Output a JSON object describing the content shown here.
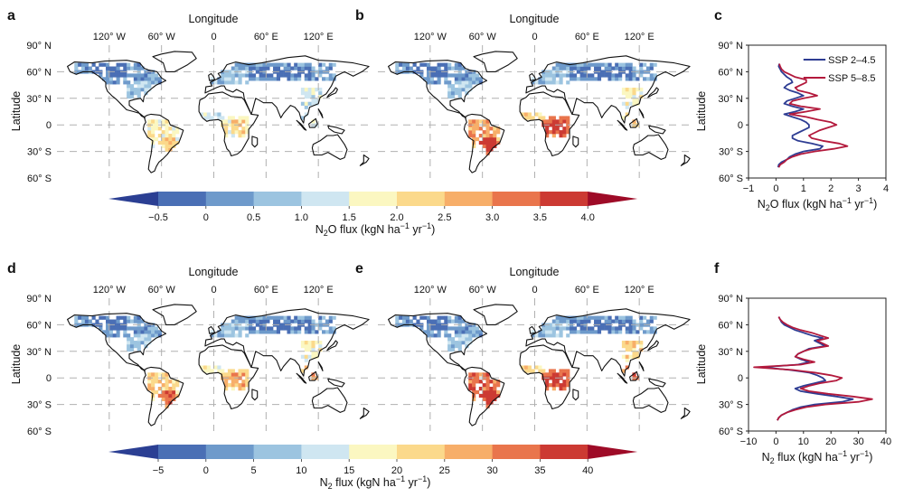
{
  "panels": [
    {
      "id": "a",
      "label": "a",
      "kind": "map",
      "xlabel": "Longitude",
      "ylabel": "Latitude",
      "scenario": "ssp245",
      "variable": "n2o"
    },
    {
      "id": "b",
      "label": "b",
      "kind": "map",
      "xlabel": "Longitude",
      "ylabel": "Latitude",
      "scenario": "ssp585",
      "variable": "n2o"
    },
    {
      "id": "c",
      "label": "c",
      "kind": "profile",
      "ylabel": "Latitude",
      "variable": "n2o"
    },
    {
      "id": "d",
      "label": "d",
      "kind": "map",
      "xlabel": "Longitude",
      "ylabel": "Latitude",
      "scenario": "ssp245",
      "variable": "n2"
    },
    {
      "id": "e",
      "label": "e",
      "kind": "map",
      "xlabel": "Longitude",
      "ylabel": "Latitude",
      "scenario": "ssp585",
      "variable": "n2"
    },
    {
      "id": "f",
      "label": "f",
      "kind": "profile",
      "ylabel": "Latitude",
      "variable": "n2"
    }
  ],
  "map_axes": {
    "lon_ticks": [
      -120,
      -60,
      0,
      60,
      120
    ],
    "lon_tick_labels": [
      "120° W",
      "60° W",
      "0",
      "60° E",
      "120° E"
    ],
    "lat_ticks": [
      90,
      60,
      30,
      0,
      -30,
      -60
    ],
    "lat_tick_labels": [
      "90° N",
      "60° N",
      "30° N",
      "0",
      "30° S",
      "60° S"
    ],
    "lon_range": [
      -180,
      180
    ],
    "lat_range": [
      -60,
      90
    ],
    "gridlines": "dashed"
  },
  "colorbars": [
    {
      "variable": "n2o",
      "label_main": "N",
      "label_sub": "2",
      "label_rest": "O flux (kgN ha",
      "label_exp1": "−1",
      "label_mid": " yr",
      "label_exp2": "−1",
      "label_end": ")",
      "ticks": [
        "−0.5",
        "0",
        "0.5",
        "1.0",
        "1.5",
        "2.0",
        "2.5",
        "3.0",
        "3.5",
        "4.0"
      ],
      "min": -1,
      "max": 4.5,
      "extend": "both"
    },
    {
      "variable": "n2",
      "label_main": "N",
      "label_sub": "2",
      "label_rest": " flux (kgN ha",
      "label_exp1": "−1",
      "label_mid": " yr",
      "label_exp2": "−1",
      "label_end": ")",
      "ticks": [
        "−5",
        "0",
        "5",
        "10",
        "15",
        "20",
        "25",
        "30",
        "35",
        "40"
      ],
      "min": -10,
      "max": 45,
      "extend": "both"
    }
  ],
  "colors": {
    "bins": [
      "#4a6fb5",
      "#6e9acb",
      "#9cc4e0",
      "#cfe6f1",
      "#fbf7c1",
      "#fbd98b",
      "#f7ae69",
      "#e9754c",
      "#cc3a33"
    ],
    "under": "#2b3f93",
    "over": "#9e0b27",
    "ssp245": "#2e3d93",
    "ssp585": "#b3193c",
    "land_outline": "#111111"
  },
  "chart_data": [
    {
      "type": "line",
      "panel": "c",
      "title": "",
      "xlabel": "N2O flux (kgN ha−1 yr−1)",
      "ylabel": "Latitude",
      "xlim": [
        -1,
        4
      ],
      "ylim": [
        -60,
        90
      ],
      "x_ticks": [
        -1,
        0,
        1,
        2,
        3,
        4
      ],
      "x_tick_labels": [
        "−1",
        "0",
        "1",
        "2",
        "3",
        "4"
      ],
      "y_ticks": [
        90,
        60,
        30,
        0,
        -30,
        -60
      ],
      "y_tick_labels": [
        "90° N",
        "60° N",
        "30° N",
        "0",
        "30° S",
        "60° S"
      ],
      "legend": "top-right",
      "series": [
        {
          "name": "SSP 2–4.5",
          "color": "#2e3d93",
          "lat": [
            69,
            66,
            63,
            60,
            57,
            54,
            51,
            48,
            45,
            42,
            39,
            36,
            33,
            30,
            27,
            24,
            21,
            18,
            15,
            12,
            9,
            6,
            3,
            0,
            -3,
            -6,
            -9,
            -12,
            -15,
            -18,
            -21,
            -24,
            -27,
            -30,
            -33,
            -36,
            -39,
            -42,
            -45,
            -48
          ],
          "x": [
            0.12,
            0.1,
            0.15,
            0.2,
            0.3,
            0.4,
            0.55,
            0.6,
            0.4,
            0.3,
            0.5,
            0.8,
            1.0,
            0.7,
            0.4,
            0.3,
            0.6,
            1.0,
            0.7,
            0.3,
            0.6,
            0.9,
            1.1,
            1.2,
            1.2,
            1.0,
            0.8,
            0.6,
            0.6,
            0.8,
            1.3,
            1.7,
            1.6,
            1.0,
            0.7,
            0.5,
            0.4,
            0.2,
            0.1,
            0.08
          ]
        },
        {
          "name": "SSP 5–8.5",
          "color": "#b3193c",
          "lat": [
            69,
            66,
            63,
            60,
            57,
            54,
            51,
            48,
            45,
            42,
            39,
            36,
            33,
            30,
            27,
            24,
            21,
            18,
            15,
            12,
            9,
            6,
            3,
            0,
            -3,
            -6,
            -9,
            -12,
            -15,
            -18,
            -21,
            -24,
            -27,
            -30,
            -33,
            -36,
            -39,
            -42,
            -45,
            -48
          ],
          "x": [
            0.12,
            0.15,
            0.2,
            0.3,
            0.5,
            0.7,
            1.1,
            1.1,
            0.9,
            0.7,
            0.8,
            1.2,
            1.5,
            1.0,
            0.6,
            0.5,
            0.9,
            1.6,
            1.1,
            0.5,
            1.1,
            1.5,
            2.0,
            2.2,
            1.9,
            1.6,
            1.4,
            1.2,
            1.3,
            1.7,
            2.3,
            2.6,
            2.1,
            1.4,
            0.9,
            0.6,
            0.4,
            0.3,
            0.15,
            0.1
          ]
        }
      ]
    },
    {
      "type": "line",
      "panel": "f",
      "title": "",
      "xlabel": "N2 flux (kgN ha−1 yr−1)",
      "ylabel": "Latitude",
      "xlim": [
        -10,
        40
      ],
      "ylim": [
        -60,
        90
      ],
      "x_ticks": [
        -10,
        0,
        10,
        20,
        30,
        40
      ],
      "x_tick_labels": [
        "−10",
        "0",
        "10",
        "20",
        "30",
        "40"
      ],
      "y_ticks": [
        90,
        60,
        30,
        0,
        -30,
        -60
      ],
      "y_tick_labels": [
        "90° N",
        "60° N",
        "30° N",
        "0",
        "30° S",
        "60° S"
      ],
      "series": [
        {
          "name": "SSP 2–4.5",
          "color": "#2e3d93",
          "lat": [
            69,
            66,
            63,
            60,
            57,
            54,
            51,
            48,
            45,
            42,
            39,
            36,
            33,
            30,
            27,
            24,
            21,
            18,
            15,
            12,
            9,
            6,
            3,
            0,
            -3,
            -6,
            -9,
            -12,
            -15,
            -18,
            -21,
            -24,
            -27,
            -30,
            -33,
            -36,
            -39,
            -42,
            -45,
            -48
          ],
          "x": [
            1,
            1.5,
            2,
            3,
            5,
            7,
            10,
            13,
            17,
            14,
            16,
            18,
            12,
            10,
            8,
            7,
            9,
            12,
            8,
            -5,
            5,
            12,
            15,
            17,
            18,
            14,
            10,
            7,
            9,
            15,
            22,
            28,
            24,
            14,
            9,
            6,
            4,
            2,
            1,
            0.5
          ]
        },
        {
          "name": "SSP 5–8.5",
          "color": "#b3193c",
          "lat": [
            69,
            66,
            63,
            60,
            57,
            54,
            51,
            48,
            45,
            42,
            39,
            36,
            33,
            30,
            27,
            24,
            21,
            18,
            15,
            12,
            9,
            6,
            3,
            0,
            -3,
            -6,
            -9,
            -12,
            -15,
            -18,
            -21,
            -24,
            -27,
            -30,
            -33,
            -36,
            -39,
            -42,
            -45,
            -48
          ],
          "x": [
            1,
            1.5,
            2.5,
            4,
            6,
            9,
            13,
            16,
            19,
            15,
            17,
            19,
            13,
            10,
            8,
            7,
            10,
            14,
            9,
            -8,
            6,
            14,
            20,
            24,
            22,
            16,
            12,
            9,
            12,
            19,
            28,
            35,
            30,
            18,
            11,
            7,
            4,
            2,
            1,
            0.5
          ]
        }
      ]
    }
  ]
}
